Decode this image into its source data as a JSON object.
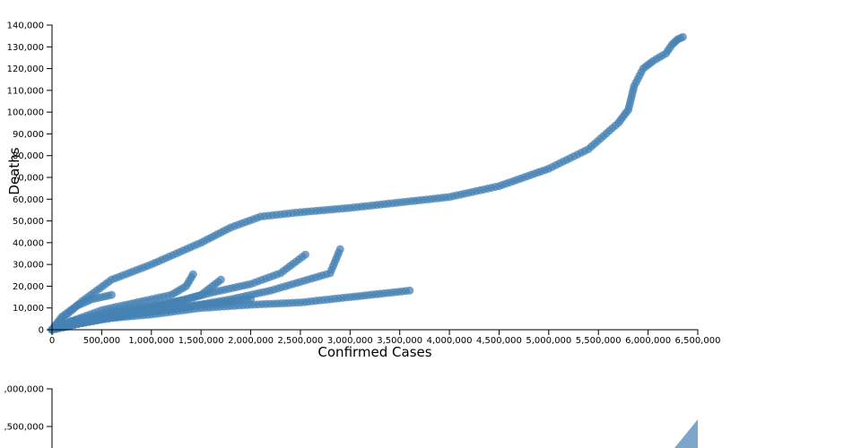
{
  "chart_data": [
    {
      "type": "scatter",
      "xlabel": "Confirmed Cases",
      "ylabel": "Deaths",
      "xlim": [
        0,
        6500000
      ],
      "ylim": [
        0,
        140000
      ],
      "x_ticks": [
        "0",
        "500,000",
        "1,000,000",
        "1,500,000",
        "2,000,000",
        "2,500,000",
        "3,000,000",
        "3,500,000",
        "4,000,000",
        "4,500,000",
        "5,000,000",
        "5,500,000",
        "6,000,000",
        "6,500,000"
      ],
      "y_ticks": [
        "0",
        "10,000",
        "20,000",
        "30,000",
        "40,000",
        "50,000",
        "60,000",
        "70,000",
        "80,000",
        "90,000",
        "100,000",
        "110,000",
        "120,000",
        "130,000",
        "140,000"
      ],
      "grid": false,
      "color": "#4682b4",
      "series": [
        {
          "points": [
            [
              0,
              0
            ],
            [
              100000,
              5000
            ],
            [
              300000,
              13000
            ],
            [
              600000,
              23000
            ],
            [
              1000000,
              30000
            ],
            [
              1500000,
              40000
            ],
            [
              1800000,
              47000
            ],
            [
              2100000,
              52000
            ],
            [
              2500000,
              54000
            ],
            [
              3000000,
              56000
            ],
            [
              3500000,
              58500
            ],
            [
              4000000,
              61000
            ],
            [
              4500000,
              66000
            ],
            [
              5000000,
              74000
            ],
            [
              5400000,
              83000
            ],
            [
              5700000,
              95000
            ],
            [
              5800000,
              101000
            ],
            [
              5860000,
              112000
            ],
            [
              5950000,
              120000
            ],
            [
              6050000,
              123500
            ],
            [
              6180000,
              127000
            ],
            [
              6240000,
              131000
            ],
            [
              6300000,
              133500
            ],
            [
              6350000,
              134500
            ]
          ]
        },
        {
          "points": [
            [
              0,
              0
            ],
            [
              200000,
              3000
            ],
            [
              500000,
              5000
            ],
            [
              1000000,
              7000
            ],
            [
              1500000,
              10000
            ],
            [
              2000000,
              11500
            ],
            [
              2500000,
              12500
            ],
            [
              3000000,
              15000
            ],
            [
              3300000,
              16500
            ],
            [
              3600000,
              18000
            ]
          ]
        },
        {
          "points": [
            [
              0,
              0
            ],
            [
              300000,
              3000
            ],
            [
              800000,
              7000
            ],
            [
              1300000,
              10000
            ],
            [
              1800000,
              14000
            ],
            [
              2200000,
              18000
            ],
            [
              2500000,
              22000
            ],
            [
              2800000,
              26000
            ],
            [
              2900000,
              37000
            ]
          ]
        },
        {
          "points": [
            [
              0,
              0
            ],
            [
              300000,
              4000
            ],
            [
              700000,
              8000
            ],
            [
              1200000,
              12000
            ],
            [
              1600000,
              17000
            ],
            [
              2000000,
              21000
            ],
            [
              2300000,
              26000
            ],
            [
              2550000,
              34500
            ]
          ]
        },
        {
          "points": [
            [
              0,
              0
            ],
            [
              200000,
              4000
            ],
            [
              500000,
              9000
            ],
            [
              900000,
              13000
            ],
            [
              1200000,
              16000
            ],
            [
              1350000,
              20000
            ],
            [
              1420000,
              25500
            ]
          ]
        },
        {
          "points": [
            [
              0,
              0
            ],
            [
              300000,
              3000
            ],
            [
              700000,
              7000
            ],
            [
              1100000,
              11000
            ],
            [
              1500000,
              16000
            ],
            [
              1700000,
              23000
            ]
          ]
        },
        {
          "points": [
            [
              0,
              0
            ],
            [
              200000,
              2500
            ],
            [
              500000,
              5000
            ],
            [
              900000,
              8000
            ],
            [
              1400000,
              11000
            ],
            [
              1700000,
              12500
            ],
            [
              2000000,
              14000
            ]
          ]
        },
        {
          "points": [
            [
              0,
              0
            ],
            [
              100000,
              6000
            ],
            [
              250000,
              11000
            ],
            [
              400000,
              14000
            ],
            [
              600000,
              16000
            ]
          ]
        },
        {
          "points": [
            [
              0,
              0
            ],
            [
              200000,
              4000
            ],
            [
              600000,
              8000
            ],
            [
              1000000,
              11000
            ],
            [
              1300000,
              13500
            ]
          ]
        }
      ]
    },
    {
      "type": "area",
      "ylim_visible": [
        4500000,
        5000000
      ],
      "y_ticks": [
        ",000,000",
        ",500,000"
      ],
      "color": "#4682b4"
    }
  ]
}
